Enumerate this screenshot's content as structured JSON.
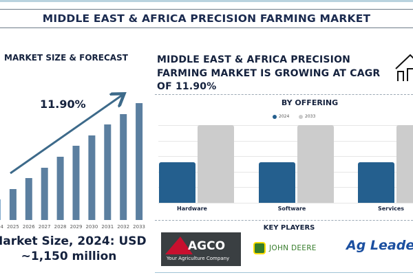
{
  "title": "MIDDLE EAST & AFRICA PRECISION FARMING MARKET",
  "left": {
    "heading": "MARKET SIZE & FORECAST",
    "cagr_label": "11.90%",
    "market_size_line1": "Market Size, 2024: USD",
    "market_size_line2": "~1,150 million"
  },
  "right": {
    "heading": "MIDDLE EAST & AFRICA PRECISION FARMING MARKET IS GROWING AT CAGR OF 11.90%",
    "key_players_label": "KEY PLAYERS",
    "players": [
      {
        "name": "AGCO",
        "tagline": "Your Agriculture Company"
      },
      {
        "name": "JOHN DEERE"
      },
      {
        "name": "Ag Leader"
      }
    ]
  },
  "chart_data": [
    {
      "type": "bar",
      "title": "MARKET SIZE & FORECAST",
      "categories": [
        "2024",
        "2025",
        "2026",
        "2027",
        "2028",
        "2029",
        "2030",
        "2031",
        "2032",
        "2033"
      ],
      "values": [
        30,
        45,
        61,
        76,
        92,
        108,
        123,
        139,
        154,
        170
      ],
      "annotation": "11.90%",
      "color": "#5b7fa0",
      "grid": false
    },
    {
      "type": "bar",
      "title": "BY OFFERING",
      "categories": [
        "Hardware",
        "Software",
        "Services"
      ],
      "series": [
        {
          "name": "2024",
          "values": [
            2.6,
            2.6,
            2.6
          ],
          "color": "#245f8e"
        },
        {
          "name": "2033",
          "values": [
            5,
            5,
            5
          ],
          "color": "#cccccc"
        }
      ],
      "ylim": [
        0,
        5
      ],
      "grid": true,
      "legend": "top"
    }
  ]
}
